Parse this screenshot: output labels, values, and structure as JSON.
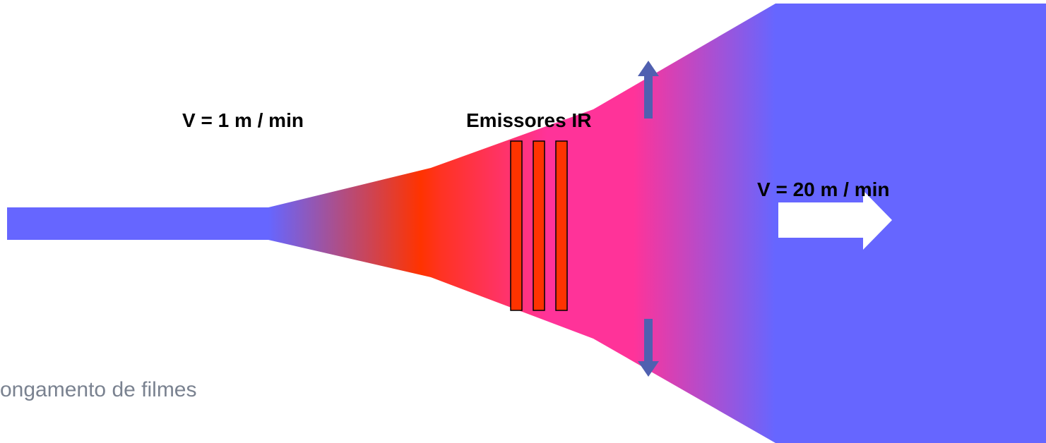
{
  "labels": {
    "inlet_speed": "V = 1 m / min",
    "emitters": "Emissores IR",
    "outlet_speed": "V = 20 m / min",
    "caption": "ongamento de filmes"
  }
}
